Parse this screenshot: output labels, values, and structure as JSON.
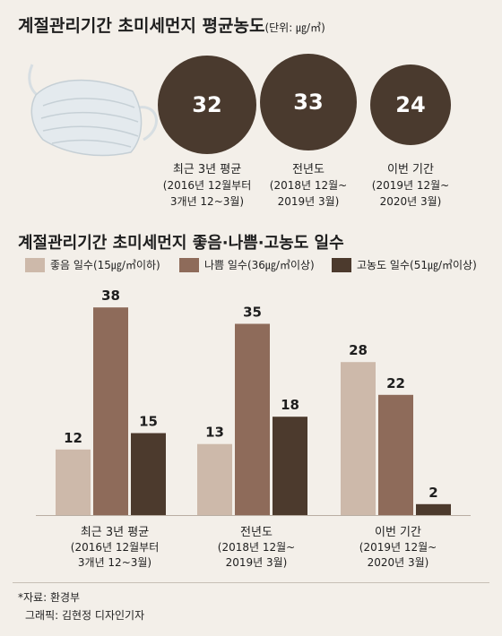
{
  "avg_section": {
    "title": "계절관리기간 초미세먼지 평균농도",
    "unit": "(단위: ㎍/㎥)",
    "items": [
      {
        "value": "32",
        "label": "최근 3년 평균",
        "sub": "(2016년 12월부터\n3개년 12~3월)"
      },
      {
        "value": "33",
        "label": "전년도",
        "sub": "(2018년 12월~\n2019년 3월)"
      },
      {
        "value": "24",
        "label": "이번 기간",
        "sub": "(2019년 12월~\n2020년 3월)"
      }
    ]
  },
  "days_section": {
    "title": "계절관리기간 초미세먼지 좋음·나쁨·고농도 일수",
    "categories": [
      {
        "label": "최근 3년 평균",
        "sub": "(2016년 12월부터\n3개년 12~3월)"
      },
      {
        "label": "전년도",
        "sub": "(2018년 12월~\n2019년 3월)"
      },
      {
        "label": "이번 기간",
        "sub": "(2019년 12월~\n2020년 3월)"
      }
    ]
  },
  "chart_data": {
    "type": "bar",
    "title": "계절관리기간 초미세먼지 좋음·나쁨·고농도 일수",
    "categories": [
      "최근 3년 평균",
      "전년도",
      "이번 기간"
    ],
    "series": [
      {
        "name": "좋음 일수(15㎍/㎥이하)",
        "values": [
          12,
          13,
          28
        ],
        "color": "#cdb9aa"
      },
      {
        "name": "나쁨 일수(36㎍/㎥이상)",
        "values": [
          38,
          35,
          22
        ],
        "color": "#8e6b5a"
      },
      {
        "name": "고농도 일수(51㎍/㎥이상)",
        "values": [
          15,
          18,
          2
        ],
        "color": "#4c3a2d"
      }
    ],
    "legend": "top",
    "grid": false
  },
  "colors": {
    "circle": "#4a3a2e",
    "background": "#f3efe9"
  },
  "footer": {
    "source": "*자료: 환경부",
    "credit": "그래픽: 김현정 디자인기자"
  }
}
